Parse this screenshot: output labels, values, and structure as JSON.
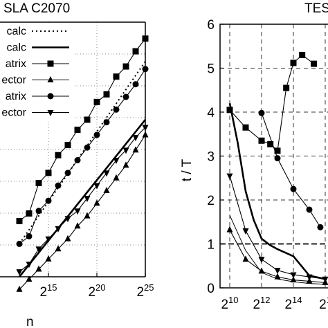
{
  "chart_data": [
    {
      "type": "line",
      "title": "SLA C2070",
      "xlabel": "n",
      "ylabel": "",
      "x_scale": "log2",
      "xlim": [
        1024,
        33554432
      ],
      "x_ticks": [
        {
          "base": "2",
          "exp": "15"
        },
        {
          "base": "2",
          "exp": "20"
        },
        {
          "base": "2",
          "exp": "25"
        }
      ],
      "grid": true,
      "legend_position": "top-left",
      "legend": [
        {
          "label": "calc",
          "style": "dotted"
        },
        {
          "label": "calc",
          "style": "solid-thick"
        },
        {
          "label": "atrix",
          "marker": "square"
        },
        {
          "label": "ector",
          "marker": "triangle-up"
        },
        {
          "label": "atrix",
          "marker": "circle"
        },
        {
          "label": "ector",
          "marker": "triangle-down"
        }
      ],
      "series": [
        {
          "style": "dotted",
          "x": [
            4096,
            33554432
          ],
          "y": [
            3.0,
            10.2
          ]
        },
        {
          "style": "solid-thick",
          "x": [
            4096,
            33554432
          ],
          "y": [
            1.7,
            7.9
          ]
        },
        {
          "marker": "square",
          "x": [
            4096,
            8192,
            16384,
            32768,
            65536,
            131072,
            262144,
            524288,
            1048576,
            2097152,
            4194304,
            8388608,
            16777216,
            33554432
          ],
          "y": [
            3.9,
            4.2,
            5.4,
            5.8,
            6.5,
            6.9,
            7.5,
            7.9,
            8.6,
            8.9,
            9.6,
            10.0,
            10.6,
            11.1
          ]
        },
        {
          "marker": "triangle-up",
          "x": [
            4096,
            8192,
            16384,
            32768,
            65536,
            131072,
            262144,
            524288,
            1048576,
            2097152,
            4194304,
            8388608,
            16777216,
            33554432
          ],
          "y": [
            1.2,
            1.6,
            2.0,
            2.4,
            2.8,
            3.2,
            3.7,
            4.1,
            4.6,
            5.1,
            5.6,
            6.1,
            6.7,
            7.3
          ]
        },
        {
          "marker": "circle",
          "x": [
            4096,
            8192,
            16384,
            32768,
            65536,
            131072,
            262144,
            524288,
            1048576,
            2097152,
            4194304,
            8388608,
            16777216,
            33554432
          ],
          "y": [
            3.0,
            3.3,
            4.3,
            4.7,
            5.3,
            5.8,
            6.3,
            6.8,
            7.3,
            7.8,
            8.3,
            8.8,
            9.3,
            9.9
          ]
        },
        {
          "marker": "triangle-down",
          "x": [
            4096,
            8192,
            16384,
            32768,
            65536,
            131072,
            262144,
            524288,
            1048576,
            2097152,
            4194304,
            8388608,
            16777216,
            33554432
          ],
          "y": [
            1.9,
            2.2,
            2.8,
            3.2,
            3.6,
            4.0,
            4.3,
            4.8,
            5.3,
            5.8,
            6.3,
            6.7,
            7.2,
            7.6
          ]
        }
      ]
    },
    {
      "type": "line",
      "title": "TES",
      "xlabel": "",
      "ylabel": "t / T",
      "x_scale": "log2",
      "xlim": [
        1024,
        65536
      ],
      "ylim": [
        0,
        6
      ],
      "y_ticks": [
        "0",
        "1",
        "2",
        "3",
        "4",
        "5",
        "6"
      ],
      "x_ticks": [
        {
          "base": "2",
          "exp": "10"
        },
        {
          "base": "2",
          "exp": "12"
        },
        {
          "base": "2",
          "exp": "14"
        },
        {
          "base": "2",
          "exp": "1"
        }
      ],
      "grid": true,
      "reference_line": 1,
      "series": [
        {
          "marker": "square",
          "x": [
            1024,
            2048,
            4096,
            6000,
            8192,
            12000,
            16384,
            24000,
            40000
          ],
          "y": [
            4.05,
            3.65,
            3.35,
            3.27,
            3.12,
            4.55,
            5.12,
            5.3,
            5.1
          ]
        },
        {
          "marker": "circle",
          "x": [
            4096,
            8192,
            16384,
            32768,
            53000
          ],
          "y": [
            3.98,
            2.95,
            2.25,
            1.78,
            1.38
          ]
        },
        {
          "style": "solid-thick",
          "x": [
            1024,
            1450,
            2048,
            2900,
            4096,
            5800,
            8192,
            16384,
            32768,
            65536
          ],
          "y": [
            4.2,
            3.3,
            2.2,
            1.55,
            1.12,
            0.98,
            0.88,
            0.72,
            0.28,
            0.2
          ]
        },
        {
          "marker": "triangle-down",
          "x": [
            1024,
            2048,
            4096,
            8192,
            16384,
            32768,
            65536
          ],
          "y": [
            2.55,
            1.3,
            0.65,
            0.4,
            0.3,
            0.25,
            0.2
          ]
        },
        {
          "marker": "triangle-up",
          "x": [
            1024,
            2048,
            4096,
            8192,
            16384,
            32768,
            65536
          ],
          "y": [
            1.32,
            0.65,
            0.38,
            0.25,
            0.18,
            0.15,
            0.12
          ]
        },
        {
          "style": "thin",
          "x": [
            1024,
            2048,
            4096,
            8192,
            16384,
            32768,
            65536
          ],
          "y": [
            1.65,
            0.85,
            0.35,
            0.2,
            0.14,
            0.1,
            0.08
          ]
        }
      ]
    }
  ]
}
